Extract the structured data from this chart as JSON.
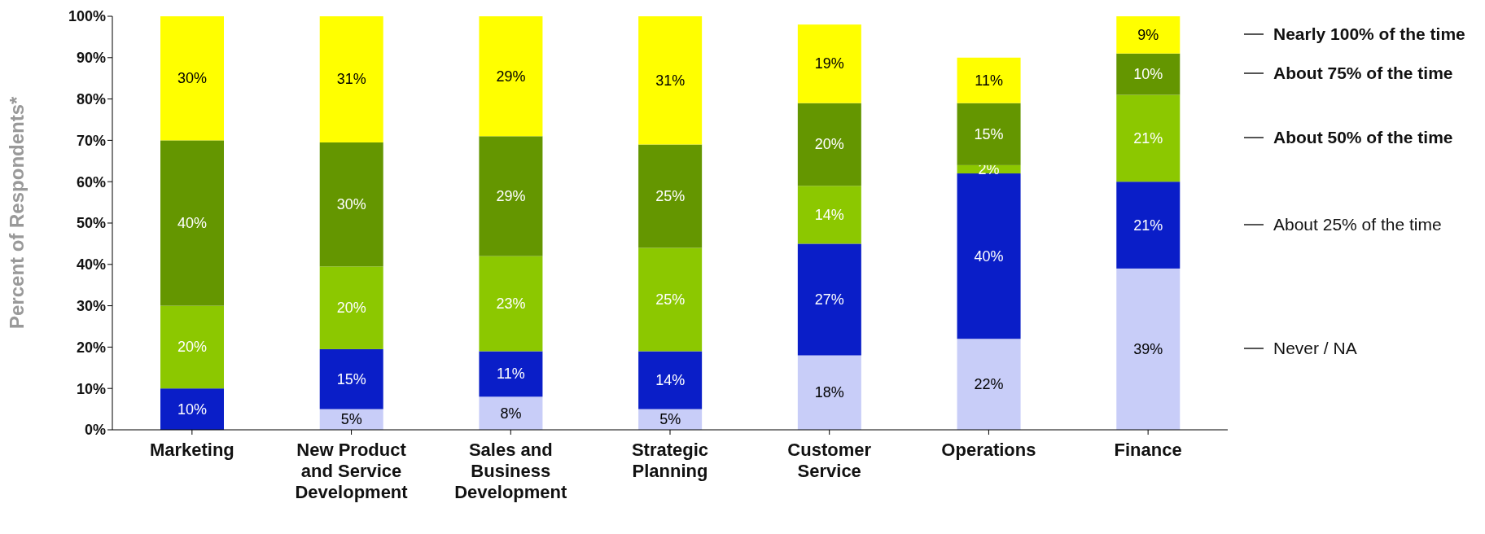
{
  "chart_data": {
    "type": "bar",
    "stacked": true,
    "ylabel": "Percent of Respondents*",
    "categories": [
      "Marketing",
      "New Product and Service Development",
      "Sales and Business Development",
      "Strategic Planning",
      "Customer Service",
      "Operations",
      "Finance"
    ],
    "series": [
      {
        "name": "Never / NA",
        "color": "#c8cdf8",
        "values": [
          0,
          5,
          8,
          5,
          18,
          22,
          39
        ],
        "value_labels": [
          null,
          "5%",
          "8%",
          "5%",
          "18%",
          "22%",
          "39%"
        ]
      },
      {
        "name": "About 25% of the time",
        "color": "#0a1ec8",
        "values": [
          10,
          14.5,
          11,
          14,
          27,
          40,
          21
        ],
        "value_labels": [
          "10%",
          "15%",
          "11%",
          "14%",
          "27%",
          "40%",
          "21%"
        ]
      },
      {
        "name": "About 50% of the time",
        "color": "#8cc800",
        "values": [
          20,
          20,
          23,
          25,
          14,
          2,
          21
        ],
        "value_labels": [
          "20%",
          "20%",
          "23%",
          "25%",
          "14%",
          "2%",
          "21%"
        ]
      },
      {
        "name": "About 75% of the time",
        "color": "#649600",
        "values": [
          40,
          30,
          29,
          25,
          20,
          15,
          10
        ],
        "value_labels": [
          "40%",
          "30%",
          "29%",
          "25%",
          "20%",
          "15%",
          "10%"
        ]
      },
      {
        "name": "Nearly 100% of the time",
        "color": "#ffff00",
        "values": [
          30,
          30.5,
          29,
          31,
          19,
          11,
          9
        ],
        "value_labels": [
          "30%",
          "31%",
          "29%",
          "31%",
          "19%",
          "11%",
          "9%"
        ]
      }
    ],
    "ylim": [
      0,
      100
    ],
    "yticks": [
      {
        "value": 0,
        "label": "0%"
      },
      {
        "value": 10,
        "label": "10%"
      },
      {
        "value": 20,
        "label": "20%"
      },
      {
        "value": 30,
        "label": "30%"
      },
      {
        "value": 40,
        "label": "40%"
      },
      {
        "value": 50,
        "label": "50%"
      },
      {
        "value": 60,
        "label": "60%"
      },
      {
        "value": 70,
        "label": "70%"
      },
      {
        "value": 80,
        "label": "80%"
      },
      {
        "value": 90,
        "label": "90%"
      },
      {
        "value": 100,
        "label": "100%"
      }
    ],
    "grid": false
  }
}
